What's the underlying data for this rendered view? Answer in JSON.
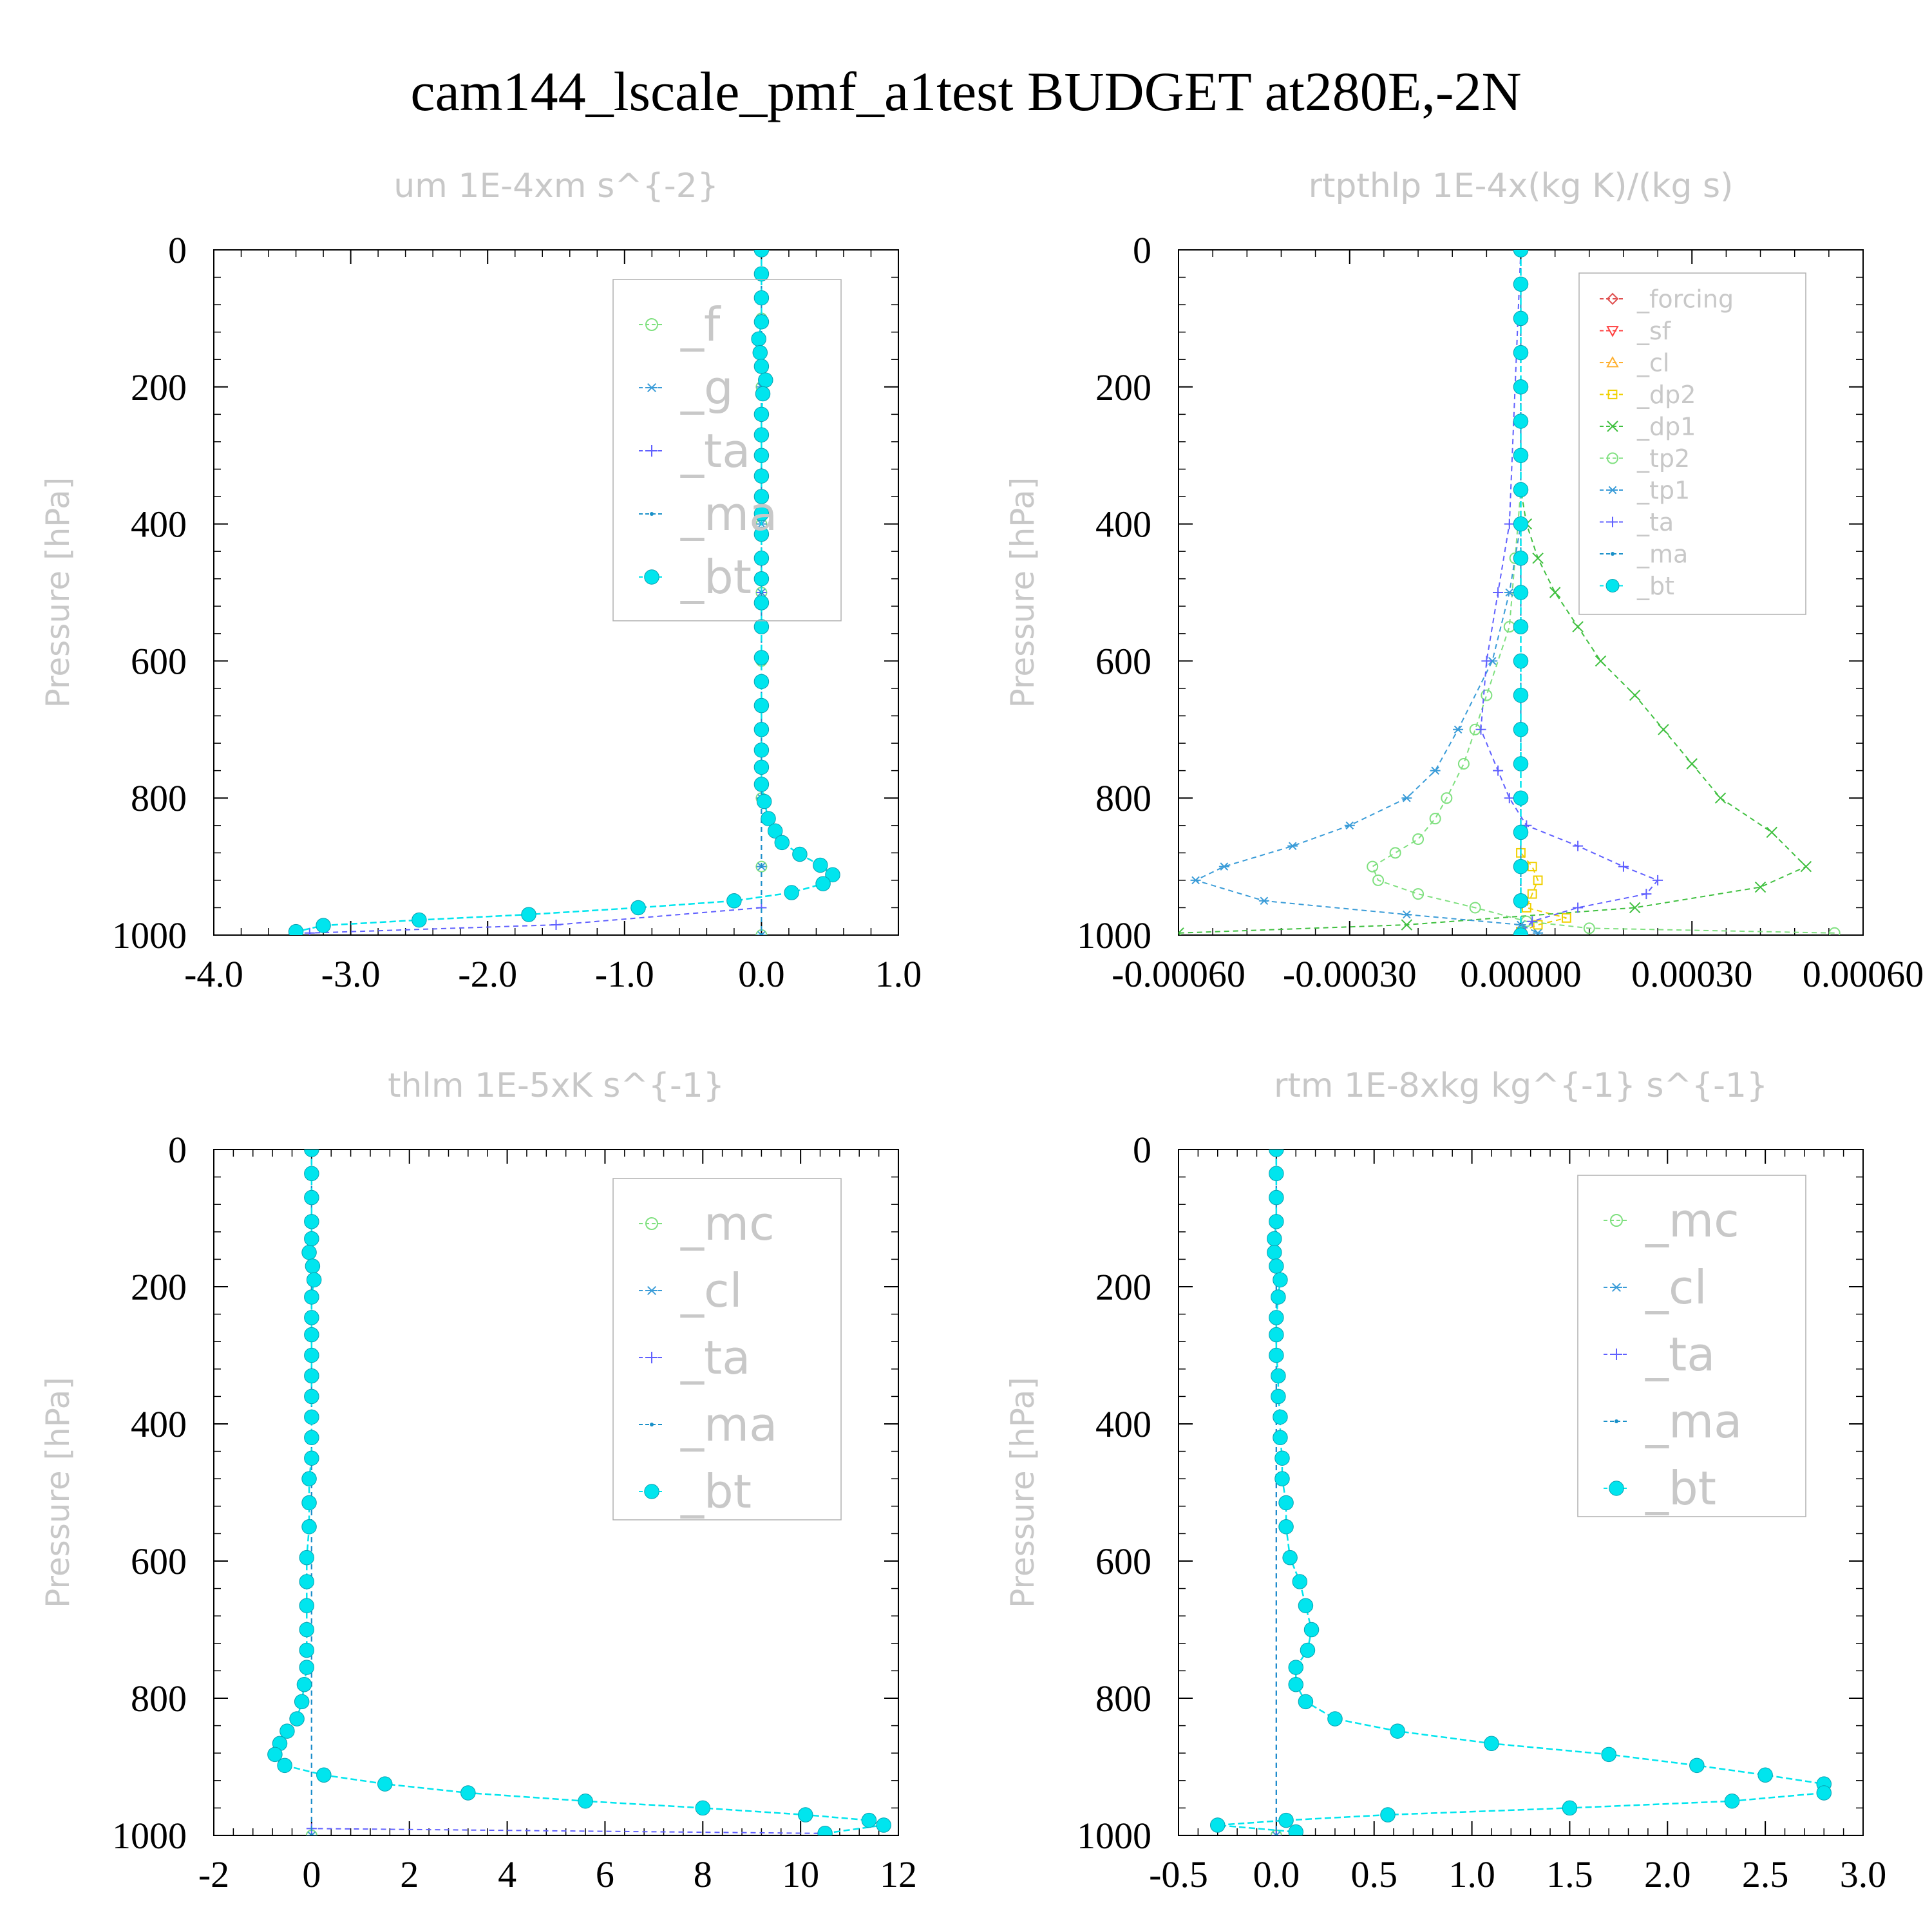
{
  "figure": {
    "title": "cam144_lscale_pmf_a1test  BUDGET at280E,-2N"
  },
  "colors": {
    "f": "#7fe07f",
    "g": "#3a9cd8",
    "ta": "#6060ff",
    "ma": "#1a90c8",
    "bt": "#00e5ee",
    "mc": "#7fe07f",
    "cl": "#3a9cd8",
    "forcing": "#e05050",
    "sf": "#ff4040",
    "cl_orange": "#ffb030",
    "dp2": "#f0d000",
    "dp1": "#40c040",
    "tp2": "#7fe07f",
    "tp1": "#3a9cd8",
    "frame": "#000000",
    "light_text": "#c8c8c8"
  },
  "chart_data": [
    {
      "type": "line",
      "title": "um   1E-4xm s^{-2}",
      "xlabel": "",
      "ylabel": "Pressure [hPa]",
      "xlim": [
        -4.0,
        1.0
      ],
      "ylim": [
        1000,
        0
      ],
      "x_ticks": [
        "-4.0",
        "-3.0",
        "-2.0",
        "-1.0",
        "0.0",
        "1.0"
      ],
      "y_ticks": [
        "0",
        "200",
        "400",
        "600",
        "800",
        "1000"
      ],
      "grid": false,
      "legend_position": "top-right",
      "series": [
        {
          "name": "_f",
          "color_key": "f",
          "marker": "circle",
          "pressure": [
            0,
            100,
            200,
            300,
            400,
            500,
            600,
            700,
            800,
            900,
            1000
          ],
          "values": [
            0,
            0,
            0,
            0,
            0,
            0,
            0,
            0,
            0,
            0,
            0
          ]
        },
        {
          "name": "_g",
          "color_key": "g",
          "marker": "asterisk",
          "pressure": [
            0,
            100,
            200,
            300,
            400,
            500,
            600,
            700,
            800,
            900,
            1000
          ],
          "values": [
            0,
            0,
            0,
            0,
            0,
            0,
            0,
            0,
            0,
            0,
            0
          ]
        },
        {
          "name": "_ta",
          "color_key": "ta",
          "marker": "plus",
          "pressure": [
            0,
            500,
            960,
            985,
            997
          ],
          "values": [
            0,
            0,
            0.0,
            -1.5,
            -3.3
          ]
        },
        {
          "name": "_ma",
          "color_key": "ma",
          "marker": "dot",
          "pressure": [
            0,
            500,
            1000
          ],
          "values": [
            0,
            0,
            0
          ]
        },
        {
          "name": "_bt",
          "color_key": "bt",
          "marker": "filled",
          "pressure": [
            0,
            35,
            70,
            105,
            130,
            150,
            170,
            190,
            210,
            240,
            270,
            300,
            330,
            360,
            385,
            415,
            450,
            480,
            515,
            550,
            595,
            630,
            665,
            700,
            730,
            755,
            780,
            805,
            830,
            848,
            865,
            882,
            898,
            912,
            925,
            938,
            950,
            960,
            970,
            978,
            986,
            995
          ],
          "values": [
            0,
            0,
            0,
            0,
            -0.02,
            -0.01,
            0.0,
            0.03,
            0.01,
            0.0,
            0.0,
            0.0,
            0.0,
            0.0,
            0.0,
            0.0,
            0.0,
            0.0,
            0.0,
            0.0,
            0.0,
            0.0,
            0.0,
            0.0,
            0.0,
            0.0,
            0.0,
            0.02,
            0.05,
            0.1,
            0.15,
            0.28,
            0.43,
            0.52,
            0.45,
            0.22,
            -0.2,
            -0.9,
            -1.7,
            -2.5,
            -3.2,
            -3.4
          ]
        }
      ]
    },
    {
      "type": "line",
      "title": "rtpthlp   1E-4x(kg K)/(kg s)",
      "xlabel": "",
      "ylabel": "Pressure [hPa]",
      "xlim": [
        -0.0006,
        0.0006
      ],
      "ylim": [
        1000,
        0
      ],
      "x_ticks": [
        "-0.00060",
        "-0.00030",
        "0.00000",
        "0.00030",
        "0.00060"
      ],
      "y_ticks": [
        "0",
        "200",
        "400",
        "600",
        "800",
        "1000"
      ],
      "grid": false,
      "legend_position": "top-right",
      "series": [
        {
          "name": "_forcing",
          "color_key": "forcing",
          "marker": "diamond",
          "pressure": [
            0,
            1000
          ],
          "values": [
            0,
            0
          ]
        },
        {
          "name": "_sf",
          "color_key": "sf",
          "marker": "triangle-down",
          "pressure": [
            0,
            1000
          ],
          "values": [
            0,
            0
          ]
        },
        {
          "name": "_cl",
          "color_key": "cl_orange",
          "marker": "triangle-up",
          "pressure": [
            0,
            1000
          ],
          "values": [
            0,
            0
          ]
        },
        {
          "name": "_dp2",
          "color_key": "dp2",
          "marker": "square",
          "pressure": [
            0,
            880,
            900,
            920,
            940,
            960,
            975,
            985,
            995
          ],
          "values": [
            0,
            0,
            2e-05,
            3e-05,
            2e-05,
            1e-05,
            8e-05,
            3e-05,
            0
          ]
        },
        {
          "name": "_dp1",
          "color_key": "dp1",
          "marker": "x",
          "pressure": [
            0,
            350,
            400,
            450,
            500,
            550,
            600,
            650,
            700,
            750,
            800,
            850,
            900,
            930,
            960,
            985,
            997
          ],
          "values": [
            0,
            0,
            1e-05,
            3e-05,
            6e-05,
            0.0001,
            0.00014,
            0.0002,
            0.00025,
            0.0003,
            0.00035,
            0.00044,
            0.0005,
            0.00042,
            0.0002,
            -0.0002,
            -0.0006
          ]
        },
        {
          "name": "_tp2",
          "color_key": "tp2",
          "marker": "circle",
          "pressure": [
            0,
            350,
            450,
            550,
            650,
            700,
            750,
            800,
            830,
            860,
            880,
            900,
            920,
            940,
            960,
            980,
            990,
            997
          ],
          "values": [
            0,
            0,
            -1e-05,
            -2e-05,
            -6e-05,
            -8e-05,
            -0.0001,
            -0.00013,
            -0.00015,
            -0.00018,
            -0.00022,
            -0.00026,
            -0.00025,
            -0.00018,
            -8e-05,
            1e-05,
            0.00012,
            0.00055
          ]
        },
        {
          "name": "_tp1",
          "color_key": "tp1",
          "marker": "asterisk",
          "pressure": [
            0,
            400,
            500,
            600,
            700,
            760,
            800,
            840,
            870,
            900,
            920,
            950,
            970,
            985,
            997
          ],
          "values": [
            0,
            0,
            -2e-05,
            -5e-05,
            -0.00011,
            -0.00015,
            -0.0002,
            -0.0003,
            -0.0004,
            -0.00052,
            -0.00057,
            -0.00045,
            -0.0002,
            0,
            3e-05
          ]
        },
        {
          "name": "_ta",
          "color_key": "ta",
          "marker": "plus",
          "pressure": [
            0,
            400,
            500,
            600,
            700,
            760,
            800,
            840,
            870,
            900,
            920,
            940,
            960,
            980,
            997
          ],
          "values": [
            0,
            -2e-05,
            -4e-05,
            -6e-05,
            -7e-05,
            -4e-05,
            -2e-05,
            1e-05,
            0.0001,
            0.00018,
            0.00024,
            0.00022,
            0.0001,
            2e-05,
            0
          ]
        },
        {
          "name": "_ma",
          "color_key": "ma",
          "marker": "dot",
          "pressure": [
            0,
            1000
          ],
          "values": [
            0,
            0
          ]
        },
        {
          "name": "_bt",
          "color_key": "bt",
          "marker": "filled",
          "pressure": [
            0,
            50,
            100,
            150,
            200,
            250,
            300,
            350,
            400,
            450,
            500,
            550,
            600,
            650,
            700,
            750,
            800,
            850,
            900,
            950,
            1000
          ],
          "values": [
            0,
            0,
            0,
            0,
            0,
            0,
            0,
            0,
            0,
            0,
            0,
            0,
            0,
            0,
            0,
            0,
            0,
            0,
            0,
            0,
            0
          ]
        }
      ]
    },
    {
      "type": "line",
      "title": "thlm   1E-5xK s^{-1}",
      "xlabel": "",
      "ylabel": "Pressure [hPa]",
      "xlim": [
        -2,
        12
      ],
      "ylim": [
        1000,
        0
      ],
      "x_ticks": [
        "-2",
        "0",
        "2",
        "4",
        "6",
        "8",
        "10",
        "12"
      ],
      "y_ticks": [
        "0",
        "200",
        "400",
        "600",
        "800",
        "1000"
      ],
      "grid": false,
      "legend_position": "top-right",
      "series": [
        {
          "name": "_mc",
          "color_key": "mc",
          "marker": "circle",
          "pressure": [
            0,
            1000
          ],
          "values": [
            0,
            0
          ]
        },
        {
          "name": "_cl",
          "color_key": "cl",
          "marker": "asterisk",
          "pressure": [
            0,
            1000
          ],
          "values": [
            0,
            0
          ]
        },
        {
          "name": "_ta",
          "color_key": "ta",
          "marker": "plus",
          "pressure": [
            0,
            990,
            997
          ],
          "values": [
            0,
            0,
            10.4
          ]
        },
        {
          "name": "_ma",
          "color_key": "ma",
          "marker": "dot",
          "pressure": [
            0,
            1000
          ],
          "values": [
            0,
            0
          ]
        },
        {
          "name": "_bt",
          "color_key": "bt",
          "marker": "filled",
          "pressure": [
            0,
            35,
            70,
            105,
            130,
            150,
            170,
            190,
            215,
            245,
            270,
            300,
            330,
            360,
            390,
            420,
            450,
            480,
            515,
            550,
            595,
            630,
            665,
            700,
            730,
            755,
            780,
            805,
            830,
            848,
            866,
            882,
            898,
            912,
            925,
            938,
            950,
            960,
            970,
            978,
            985,
            997
          ],
          "values": [
            0,
            0,
            0,
            0,
            0,
            -0.05,
            0.02,
            0.05,
            0.0,
            0.0,
            0.0,
            0.0,
            0.0,
            0.0,
            0.0,
            0.0,
            0.0,
            -0.05,
            -0.05,
            -0.05,
            -0.1,
            -0.1,
            -0.1,
            -0.1,
            -0.1,
            -0.1,
            -0.15,
            -0.2,
            -0.3,
            -0.5,
            -0.65,
            -0.75,
            -0.55,
            0.25,
            1.5,
            3.2,
            5.6,
            8.0,
            10.1,
            11.4,
            11.7,
            10.5
          ]
        }
      ]
    },
    {
      "type": "line",
      "title": "rtm   1E-8xkg kg^{-1} s^{-1}",
      "xlabel": "",
      "ylabel": "Pressure [hPa]",
      "xlim": [
        -0.5,
        3.0
      ],
      "ylim": [
        1000,
        0
      ],
      "x_ticks": [
        "-0.5",
        "0.0",
        "0.5",
        "1.0",
        "1.5",
        "2.0",
        "2.5",
        "3.0"
      ],
      "y_ticks": [
        "0",
        "200",
        "400",
        "600",
        "800",
        "1000"
      ],
      "grid": false,
      "legend_position": "top-right",
      "series": [
        {
          "name": "_mc",
          "color_key": "mc",
          "marker": "circle",
          "pressure": [
            0,
            1000
          ],
          "values": [
            0,
            0
          ]
        },
        {
          "name": "_cl",
          "color_key": "cl",
          "marker": "asterisk",
          "pressure": [
            0,
            1000
          ],
          "values": [
            0,
            0
          ]
        },
        {
          "name": "_ta",
          "color_key": "ta",
          "marker": "plus",
          "pressure": [
            0,
            1000
          ],
          "values": [
            0,
            0
          ]
        },
        {
          "name": "_ma",
          "color_key": "ma",
          "marker": "dot",
          "pressure": [
            0,
            1000
          ],
          "values": [
            0,
            0
          ]
        },
        {
          "name": "_bt",
          "color_key": "bt",
          "marker": "filled",
          "pressure": [
            0,
            35,
            70,
            105,
            130,
            150,
            170,
            190,
            215,
            245,
            270,
            300,
            330,
            360,
            390,
            420,
            450,
            480,
            515,
            550,
            595,
            630,
            665,
            700,
            730,
            755,
            780,
            805,
            830,
            848,
            866,
            882,
            898,
            912,
            925,
            938,
            950,
            960,
            970,
            978,
            985,
            995
          ],
          "values": [
            0,
            0,
            0,
            0,
            -0.01,
            -0.01,
            0.0,
            0.02,
            0.01,
            0.0,
            0.0,
            0.0,
            0.01,
            0.01,
            0.02,
            0.02,
            0.03,
            0.03,
            0.05,
            0.05,
            0.07,
            0.12,
            0.15,
            0.18,
            0.16,
            0.1,
            0.1,
            0.15,
            0.3,
            0.62,
            1.1,
            1.7,
            2.15,
            2.5,
            2.8,
            2.8,
            2.33,
            1.5,
            0.57,
            0.05,
            -0.3,
            0.1
          ]
        }
      ]
    }
  ]
}
